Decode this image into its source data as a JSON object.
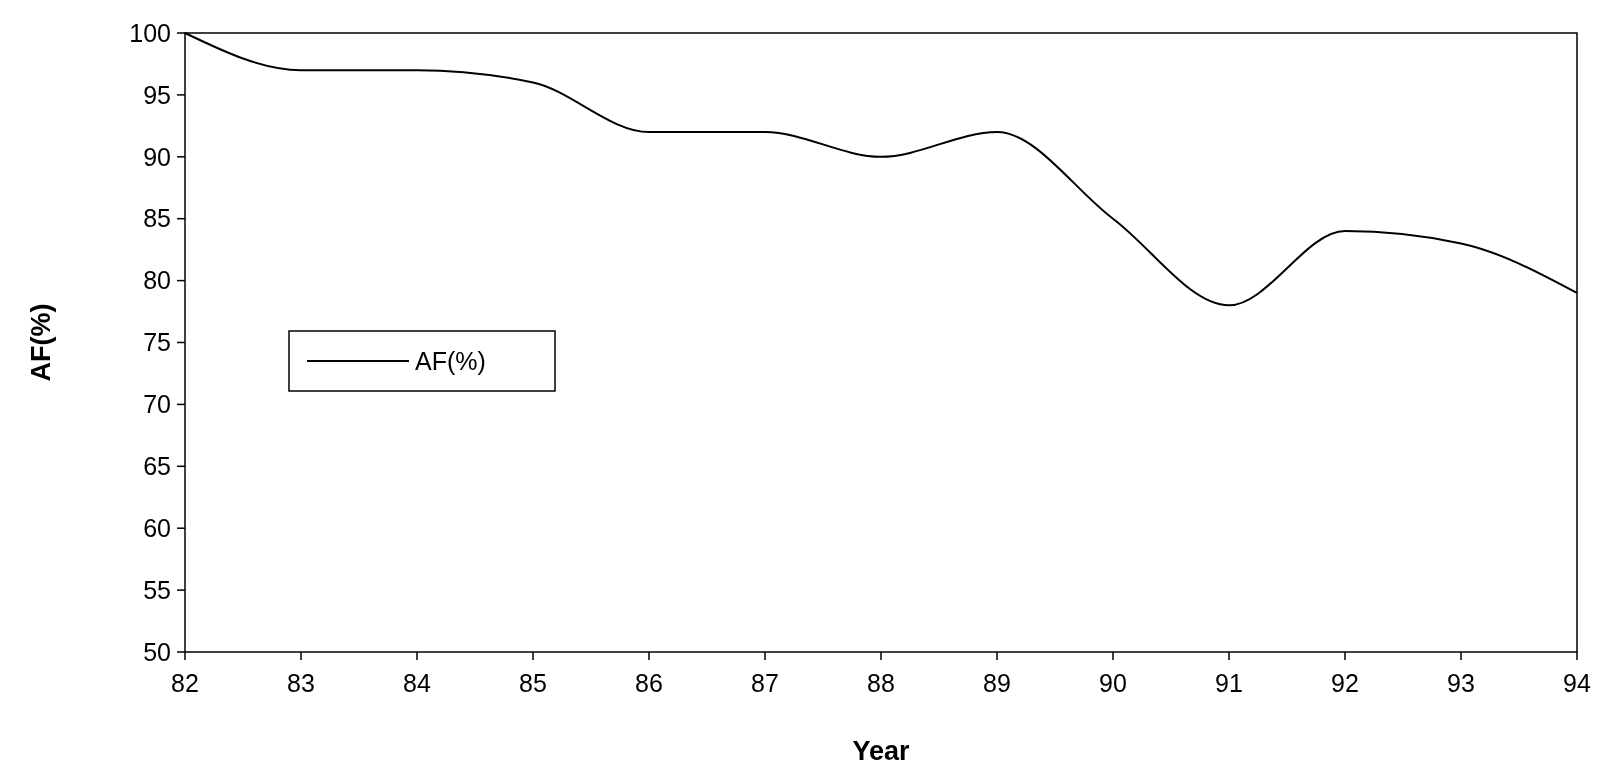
{
  "chart_data": {
    "type": "line",
    "xlabel": "Year",
    "ylabel": "AF(%)",
    "x": [
      82,
      83,
      84,
      85,
      86,
      87,
      88,
      89,
      90,
      91,
      92,
      93,
      94
    ],
    "series": [
      {
        "name": "AF(%)",
        "color": "#000000",
        "values": [
          100,
          97,
          97,
          96,
          92,
          92,
          90,
          92,
          85,
          78,
          84,
          83,
          79
        ]
      }
    ],
    "xlim": [
      82,
      94
    ],
    "xticks": [
      82,
      83,
      84,
      85,
      86,
      87,
      88,
      89,
      90,
      91,
      92,
      93,
      94
    ],
    "ylim": [
      50,
      100
    ],
    "yticks": [
      50,
      55,
      60,
      65,
      70,
      75,
      80,
      85,
      90,
      95,
      100
    ],
    "grid": false,
    "legend": "left",
    "marker": "none",
    "line_style": "solid"
  }
}
